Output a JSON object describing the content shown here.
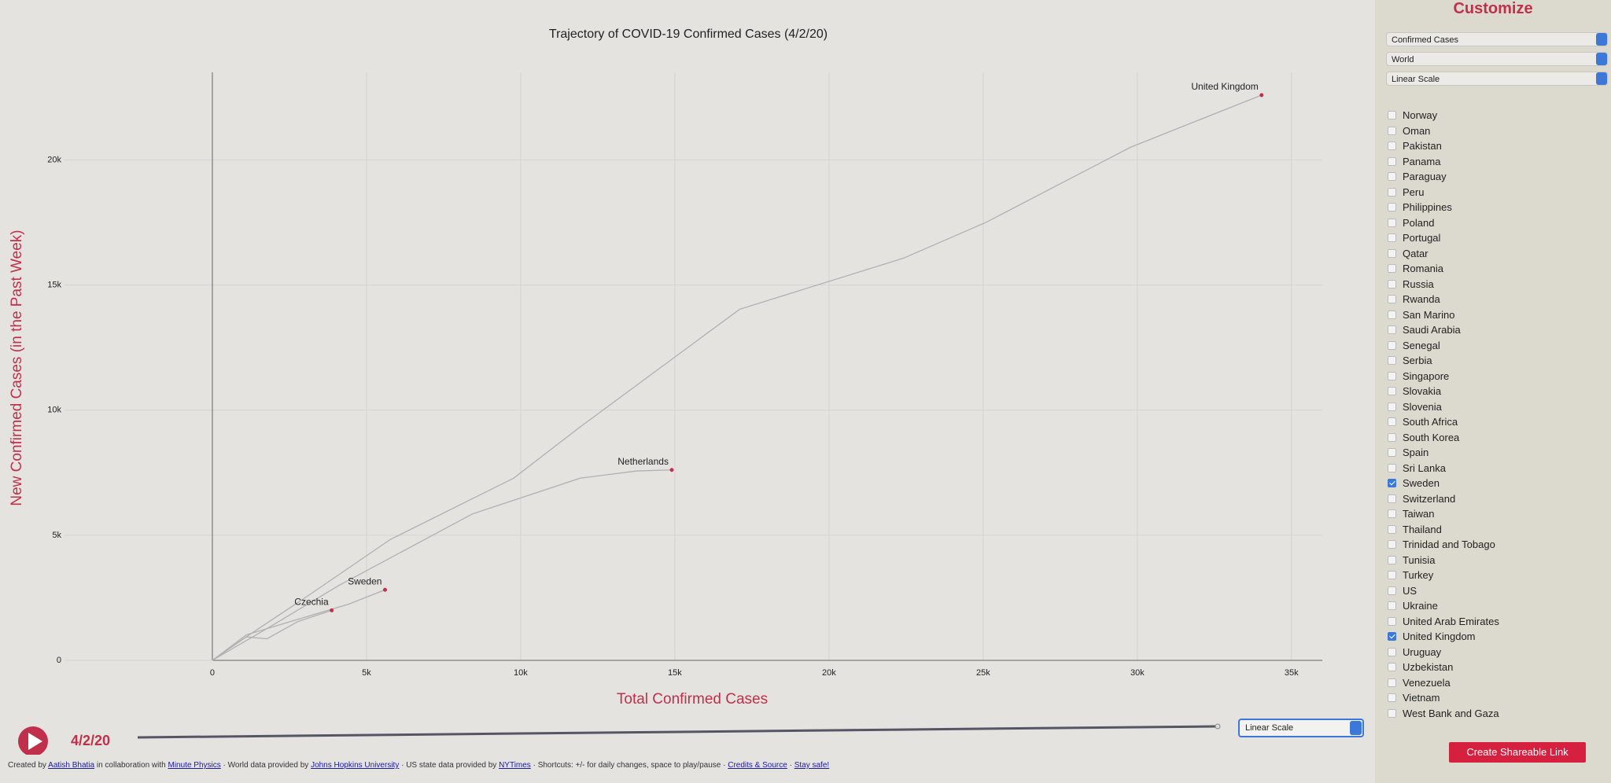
{
  "chart_data": {
    "type": "line",
    "title": "Trajectory of COVID-19 Confirmed Cases (4/2/20)",
    "x_label": "Total Confirmed Cases",
    "y_label": "New Confirmed Cases (in the Past Week)",
    "xlim": [
      -5000,
      36000
    ],
    "ylim": [
      0,
      23500
    ],
    "xticks": [
      0,
      {
        "value": 5000,
        "label": "5k"
      },
      {
        "value": 10000,
        "label": "10k"
      },
      {
        "value": 15000,
        "label": "15k"
      },
      {
        "value": 20000,
        "label": "20k"
      },
      {
        "value": 25000,
        "label": "25k"
      },
      {
        "value": 30000,
        "label": "30k"
      },
      {
        "value": 35000,
        "label": "35k"
      }
    ],
    "yticks": [
      0,
      {
        "value": 5000,
        "label": "5k"
      },
      {
        "value": 10000,
        "label": "10k"
      },
      {
        "value": 15000,
        "label": "15k"
      },
      {
        "value": 20000,
        "label": "20k"
      }
    ],
    "grid": true,
    "end_marker_color": "#c0304a",
    "series": [
      {
        "name": "United Kingdom",
        "color": "#b0b0b0",
        "x": [
          0,
          1100,
          3100,
          5770,
          9770,
          11930,
          17100,
          22430,
          25100,
          29770,
          34030
        ],
        "values": [
          0,
          940,
          2580,
          4830,
          7280,
          9330,
          14030,
          16080,
          17510,
          20500,
          22590
        ]
      },
      {
        "name": "Netherlands",
        "color": "#b0b0b0",
        "x": [
          0,
          1770,
          4100,
          8430,
          11930,
          13770,
          14900
        ],
        "values": [
          0,
          1270,
          2990,
          5850,
          7280,
          7570,
          7610
        ]
      },
      {
        "name": "Sweden",
        "color": "#b0b0b0",
        "x": [
          0,
          1100,
          3100,
          4430,
          5600
        ],
        "values": [
          0,
          1020,
          1760,
          2250,
          2820
        ]
      },
      {
        "name": "Czechia",
        "color": "#b0b0b0",
        "x": [
          0,
          1100,
          1770,
          2770,
          3870
        ],
        "values": [
          0,
          940,
          860,
          1550,
          2000
        ]
      }
    ]
  },
  "controls": {
    "date": "4/2/20",
    "scale_select": "Linear Scale"
  },
  "sidebar": {
    "title": "Customize",
    "selects": [
      "Confirmed Cases",
      "World",
      "Linear Scale"
    ],
    "countries": [
      {
        "name": "Norway",
        "checked": false
      },
      {
        "name": "Oman",
        "checked": false
      },
      {
        "name": "Pakistan",
        "checked": false
      },
      {
        "name": "Panama",
        "checked": false
      },
      {
        "name": "Paraguay",
        "checked": false
      },
      {
        "name": "Peru",
        "checked": false
      },
      {
        "name": "Philippines",
        "checked": false
      },
      {
        "name": "Poland",
        "checked": false
      },
      {
        "name": "Portugal",
        "checked": false
      },
      {
        "name": "Qatar",
        "checked": false
      },
      {
        "name": "Romania",
        "checked": false
      },
      {
        "name": "Russia",
        "checked": false
      },
      {
        "name": "Rwanda",
        "checked": false
      },
      {
        "name": "San Marino",
        "checked": false
      },
      {
        "name": "Saudi Arabia",
        "checked": false
      },
      {
        "name": "Senegal",
        "checked": false
      },
      {
        "name": "Serbia",
        "checked": false
      },
      {
        "name": "Singapore",
        "checked": false
      },
      {
        "name": "Slovakia",
        "checked": false
      },
      {
        "name": "Slovenia",
        "checked": false
      },
      {
        "name": "South Africa",
        "checked": false
      },
      {
        "name": "South Korea",
        "checked": false
      },
      {
        "name": "Spain",
        "checked": false
      },
      {
        "name": "Sri Lanka",
        "checked": false
      },
      {
        "name": "Sweden",
        "checked": true
      },
      {
        "name": "Switzerland",
        "checked": false
      },
      {
        "name": "Taiwan",
        "checked": false
      },
      {
        "name": "Thailand",
        "checked": false
      },
      {
        "name": "Trinidad and Tobago",
        "checked": false
      },
      {
        "name": "Tunisia",
        "checked": false
      },
      {
        "name": "Turkey",
        "checked": false
      },
      {
        "name": "US",
        "checked": false
      },
      {
        "name": "Ukraine",
        "checked": false
      },
      {
        "name": "United Arab Emirates",
        "checked": false
      },
      {
        "name": "United Kingdom",
        "checked": true
      },
      {
        "name": "Uruguay",
        "checked": false
      },
      {
        "name": "Uzbekistan",
        "checked": false
      },
      {
        "name": "Venezuela",
        "checked": false
      },
      {
        "name": "Vietnam",
        "checked": false
      },
      {
        "name": "West Bank and Gaza",
        "checked": false
      }
    ],
    "button": "Create Shareable Link"
  },
  "footer": [
    {
      "text": "Created by "
    },
    {
      "text": "Aatish Bhatia",
      "link": true
    },
    {
      "text": " in collaboration with "
    },
    {
      "text": "Minute Physics",
      "link": true
    },
    {
      "text": " · World data provided by "
    },
    {
      "text": "Johns Hopkins University",
      "link": true
    },
    {
      "text": " · US state data provided by "
    },
    {
      "text": "NYTimes",
      "link": true
    },
    {
      "text": " · Shortcuts: +/- for daily changes, space to play/pause · "
    },
    {
      "text": "Credits & Source",
      "link": true
    },
    {
      "text": " · "
    },
    {
      "text": "Stay safe!",
      "link": true
    }
  ]
}
